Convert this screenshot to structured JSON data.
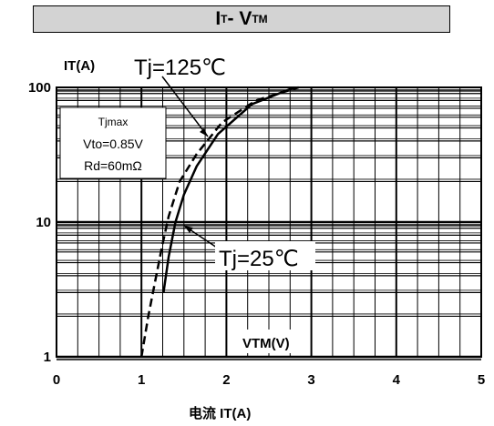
{
  "title": {
    "main_i": "I",
    "sub_t": "T",
    "dash": " - V",
    "sub_tm": "TM"
  },
  "chart_data": {
    "type": "line",
    "title": "IT - VTM",
    "xlabel": "VTM(V)",
    "ylabel": "IT(A)",
    "bottom_label": "电流 IT(A)",
    "xlim": [
      0,
      5
    ],
    "ylim": [
      1,
      100
    ],
    "y_scale": "log",
    "grid": true,
    "x_ticks": [
      "0",
      "1",
      "2",
      "3",
      "4",
      "5"
    ],
    "y_ticks": [
      "1",
      "10",
      "100"
    ],
    "legend_box": [
      "Tjmax",
      "Vto=0.85V",
      "Rd=60mΩ"
    ],
    "series": [
      {
        "name": "Tj=125℃",
        "style": "dashed",
        "x": [
          1.0,
          1.08,
          1.16,
          1.24,
          1.32,
          1.45,
          1.65,
          1.95,
          2.35,
          2.85
        ],
        "y": [
          1.0,
          2.0,
          3.6,
          6.5,
          11.0,
          20.0,
          32.0,
          55.0,
          80.0,
          100.0
        ]
      },
      {
        "name": "Tj=25℃",
        "style": "solid",
        "x": [
          1.26,
          1.32,
          1.4,
          1.5,
          1.65,
          1.9,
          2.3,
          2.8
        ],
        "y": [
          3.0,
          5.5,
          10.0,
          16.0,
          26.0,
          45.0,
          75.0,
          100.0
        ]
      }
    ],
    "annotations": [
      "Tj=125℃",
      "Tj=25℃"
    ],
    "colors": {
      "line": "#000000",
      "grid": "#000000",
      "legend_bg": "#ffffff"
    }
  }
}
